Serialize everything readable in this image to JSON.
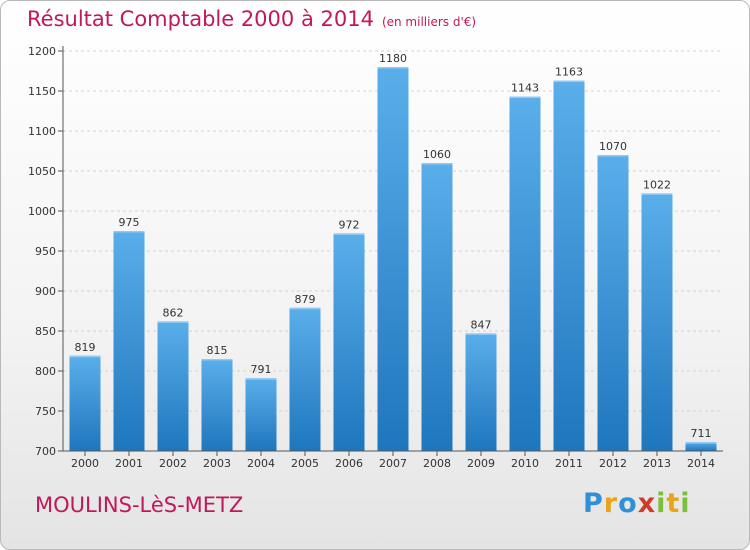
{
  "header": {
    "title": "Résultat Comptable 2000 à 2014",
    "subtitle": "(en milliers d'€)"
  },
  "footer": {
    "city": "MOULINS-LèS-METZ",
    "logo_letters": [
      {
        "ch": "P",
        "color": "#2f8fd8"
      },
      {
        "ch": "r",
        "color": "#e8a51c"
      },
      {
        "ch": "o",
        "color": "#2f8fd8"
      },
      {
        "ch": "x",
        "color": "#d03a2b"
      },
      {
        "ch": "i",
        "color": "#7cbf3a"
      },
      {
        "ch": "t",
        "color": "#e8a51c"
      },
      {
        "ch": "i",
        "color": "#7cbf3a"
      }
    ]
  },
  "chart_data": {
    "type": "bar",
    "title": "Résultat Comptable 2000 à 2014",
    "subtitle": "(en milliers d'€)",
    "categories": [
      "2000",
      "2001",
      "2002",
      "2003",
      "2004",
      "2005",
      "2006",
      "2007",
      "2008",
      "2009",
      "2010",
      "2011",
      "2012",
      "2013",
      "2014"
    ],
    "values": [
      819,
      975,
      862,
      815,
      791,
      879,
      972,
      1180,
      1060,
      847,
      1143,
      1163,
      1070,
      1022,
      711
    ],
    "ylim": [
      700,
      1200
    ],
    "yticks": [
      700,
      750,
      800,
      850,
      900,
      950,
      1000,
      1050,
      1100,
      1150,
      1200
    ],
    "grid": true,
    "colors": {
      "bar_top": "#5aaeea",
      "bar_bottom": "#1e76bd",
      "axis": "#555555",
      "text": "#333333",
      "title": "#c2185b"
    }
  }
}
